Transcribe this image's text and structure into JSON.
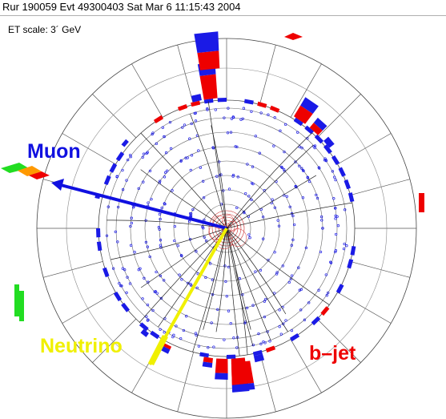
{
  "header": {
    "run_info": "Rur 190059 Evt 49300403 Sat Mar  6 11:15:43 2004"
  },
  "et_scale": "ET scale: 3´ GeV",
  "labels": {
    "muon": "Muon",
    "neutrino": "Neutrino",
    "bjet": "b–jet"
  },
  "colors": {
    "muon": "#1010e0",
    "neutrino": "#f0f000",
    "bjet": "#ee0000",
    "em_tower": "#ee0000",
    "had_tower": "#1a1ae6",
    "muon_chamber": "#22dd22",
    "muon_chamber_mid": "#ff9900"
  }
}
